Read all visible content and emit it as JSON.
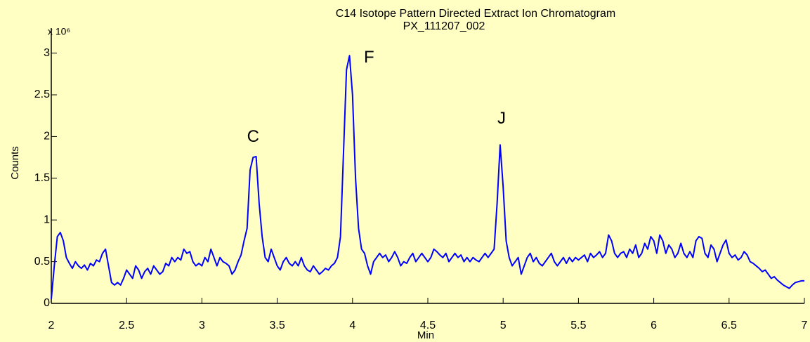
{
  "chart_data": {
    "type": "line",
    "title": "C14 Isotope Pattern Directed Extract Ion Chromatogram",
    "subtitle": "PX_111207_002",
    "x_label": "Min",
    "y_label": "Counts",
    "y_scale_label": "x 10⁶",
    "color": "#0000ff",
    "xlim": [
      2,
      7
    ],
    "ylim": [
      0,
      3.3
    ],
    "xticks": [
      2,
      2.5,
      3,
      3.5,
      4,
      4.5,
      5,
      5.5,
      6,
      6.5,
      7
    ],
    "yticks": [
      0,
      0.5,
      1,
      1.5,
      2,
      2.5,
      3
    ],
    "annotations": [
      {
        "text": "C",
        "x": 3.34,
        "y": 1.99
      },
      {
        "text": "F",
        "x": 4.11,
        "y": 2.94
      },
      {
        "text": "J",
        "x": 4.99,
        "y": 2.21
      }
    ],
    "x": [
      2,
      2.02,
      2.04,
      2.06,
      2.08,
      2.1,
      2.12,
      2.14,
      2.16,
      2.18,
      2.2,
      2.22,
      2.24,
      2.26,
      2.28,
      2.3,
      2.32,
      2.34,
      2.36,
      2.38,
      2.4,
      2.42,
      2.44,
      2.46,
      2.48,
      2.5,
      2.52,
      2.54,
      2.56,
      2.58,
      2.6,
      2.62,
      2.64,
      2.66,
      2.68,
      2.7,
      2.72,
      2.74,
      2.76,
      2.78,
      2.8,
      2.82,
      2.84,
      2.86,
      2.88,
      2.9,
      2.92,
      2.94,
      2.96,
      2.98,
      3,
      3.02,
      3.04,
      3.06,
      3.08,
      3.1,
      3.12,
      3.14,
      3.16,
      3.18,
      3.2,
      3.22,
      3.24,
      3.26,
      3.28,
      3.3,
      3.32,
      3.34,
      3.36,
      3.38,
      3.4,
      3.42,
      3.44,
      3.46,
      3.48,
      3.5,
      3.52,
      3.54,
      3.56,
      3.58,
      3.6,
      3.62,
      3.64,
      3.66,
      3.68,
      3.7,
      3.72,
      3.74,
      3.76,
      3.78,
      3.8,
      3.82,
      3.84,
      3.86,
      3.88,
      3.9,
      3.92,
      3.94,
      3.96,
      3.98,
      4,
      4.02,
      4.04,
      4.06,
      4.08,
      4.1,
      4.12,
      4.14,
      4.16,
      4.18,
      4.2,
      4.22,
      4.24,
      4.26,
      4.28,
      4.3,
      4.32,
      4.34,
      4.36,
      4.38,
      4.4,
      4.42,
      4.44,
      4.46,
      4.48,
      4.5,
      4.52,
      4.54,
      4.56,
      4.58,
      4.6,
      4.62,
      4.64,
      4.66,
      4.68,
      4.7,
      4.72,
      4.74,
      4.76,
      4.78,
      4.8,
      4.82,
      4.84,
      4.86,
      4.88,
      4.9,
      4.92,
      4.94,
      4.96,
      4.98,
      5,
      5.02,
      5.04,
      5.06,
      5.08,
      5.1,
      5.12,
      5.14,
      5.16,
      5.18,
      5.2,
      5.22,
      5.24,
      5.26,
      5.28,
      5.3,
      5.32,
      5.34,
      5.36,
      5.38,
      5.4,
      5.42,
      5.44,
      5.46,
      5.48,
      5.5,
      5.52,
      5.54,
      5.56,
      5.58,
      5.6,
      5.62,
      5.64,
      5.66,
      5.68,
      5.7,
      5.72,
      5.74,
      5.76,
      5.78,
      5.8,
      5.82,
      5.84,
      5.86,
      5.88,
      5.9,
      5.92,
      5.94,
      5.96,
      5.98,
      6,
      6.02,
      6.04,
      6.06,
      6.08,
      6.1,
      6.12,
      6.14,
      6.16,
      6.18,
      6.2,
      6.22,
      6.24,
      6.26,
      6.28,
      6.3,
      6.32,
      6.34,
      6.36,
      6.38,
      6.4,
      6.42,
      6.44,
      6.46,
      6.48,
      6.5,
      6.52,
      6.54,
      6.56,
      6.58,
      6.6,
      6.62,
      6.64,
      6.66,
      6.68,
      6.7,
      6.72,
      6.74,
      6.76,
      6.78,
      6.8,
      6.82,
      6.84,
      6.86,
      6.88,
      6.9,
      6.92,
      6.94,
      6.96,
      6.98,
      7
    ],
    "values": [
      0.05,
      0.45,
      0.8,
      0.85,
      0.75,
      0.55,
      0.48,
      0.42,
      0.5,
      0.45,
      0.42,
      0.46,
      0.4,
      0.48,
      0.45,
      0.52,
      0.5,
      0.6,
      0.65,
      0.45,
      0.25,
      0.22,
      0.25,
      0.22,
      0.3,
      0.4,
      0.35,
      0.3,
      0.45,
      0.4,
      0.3,
      0.38,
      0.42,
      0.35,
      0.45,
      0.4,
      0.35,
      0.38,
      0.48,
      0.45,
      0.55,
      0.5,
      0.55,
      0.52,
      0.65,
      0.6,
      0.62,
      0.5,
      0.45,
      0.48,
      0.45,
      0.55,
      0.5,
      0.65,
      0.55,
      0.45,
      0.55,
      0.5,
      0.48,
      0.45,
      0.35,
      0.4,
      0.5,
      0.58,
      0.75,
      0.9,
      1.6,
      1.75,
      1.76,
      1.2,
      0.8,
      0.55,
      0.5,
      0.65,
      0.55,
      0.45,
      0.4,
      0.5,
      0.55,
      0.48,
      0.45,
      0.5,
      0.45,
      0.55,
      0.45,
      0.4,
      0.38,
      0.45,
      0.4,
      0.35,
      0.38,
      0.42,
      0.4,
      0.45,
      0.48,
      0.55,
      0.8,
      1.8,
      2.8,
      2.97,
      2.5,
      1.5,
      0.9,
      0.65,
      0.6,
      0.45,
      0.35,
      0.5,
      0.55,
      0.6,
      0.55,
      0.58,
      0.5,
      0.55,
      0.62,
      0.55,
      0.45,
      0.5,
      0.48,
      0.55,
      0.6,
      0.5,
      0.55,
      0.6,
      0.55,
      0.5,
      0.55,
      0.65,
      0.62,
      0.58,
      0.55,
      0.6,
      0.5,
      0.55,
      0.6,
      0.55,
      0.58,
      0.5,
      0.55,
      0.5,
      0.55,
      0.52,
      0.5,
      0.55,
      0.6,
      0.55,
      0.6,
      0.65,
      1.2,
      1.9,
      1.4,
      0.75,
      0.55,
      0.45,
      0.5,
      0.55,
      0.35,
      0.45,
      0.55,
      0.6,
      0.5,
      0.55,
      0.48,
      0.45,
      0.5,
      0.55,
      0.6,
      0.5,
      0.45,
      0.5,
      0.55,
      0.48,
      0.55,
      0.5,
      0.55,
      0.52,
      0.55,
      0.58,
      0.5,
      0.6,
      0.55,
      0.58,
      0.62,
      0.55,
      0.6,
      0.82,
      0.75,
      0.6,
      0.55,
      0.6,
      0.62,
      0.55,
      0.65,
      0.6,
      0.7,
      0.55,
      0.6,
      0.72,
      0.65,
      0.8,
      0.75,
      0.6,
      0.82,
      0.75,
      0.6,
      0.7,
      0.65,
      0.55,
      0.6,
      0.72,
      0.6,
      0.55,
      0.62,
      0.55,
      0.75,
      0.8,
      0.78,
      0.6,
      0.55,
      0.7,
      0.65,
      0.5,
      0.6,
      0.7,
      0.76,
      0.6,
      0.55,
      0.58,
      0.52,
      0.55,
      0.62,
      0.58,
      0.5,
      0.48,
      0.45,
      0.42,
      0.38,
      0.4,
      0.35,
      0.3,
      0.32,
      0.28,
      0.25,
      0.22,
      0.2,
      0.18,
      0.22,
      0.25,
      0.26,
      0.27,
      0.27
    ]
  }
}
